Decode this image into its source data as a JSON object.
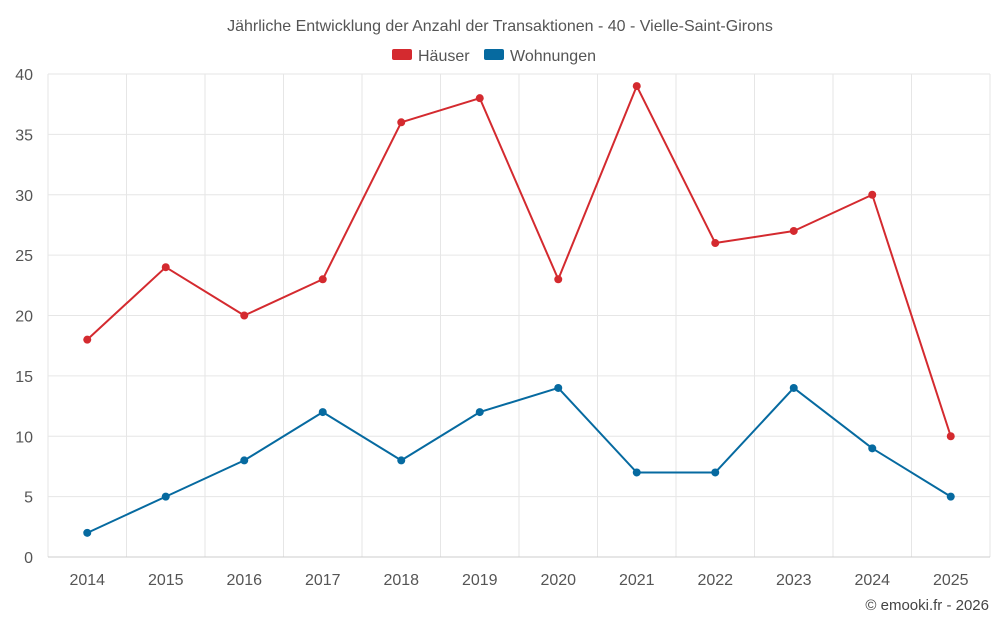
{
  "chart_data": {
    "type": "line",
    "title": "Jährliche Entwicklung der Anzahl der Transaktionen - 40 - Vielle-Saint-Girons",
    "categories": [
      "2014",
      "2015",
      "2016",
      "2017",
      "2018",
      "2019",
      "2020",
      "2021",
      "2022",
      "2023",
      "2024",
      "2025"
    ],
    "series": [
      {
        "name": "Häuser",
        "color": "#d42a2f",
        "values": [
          18,
          24,
          20,
          23,
          36,
          38,
          23,
          39,
          26,
          27,
          30,
          10
        ]
      },
      {
        "name": "Wohnungen",
        "color": "#066aa0",
        "values": [
          2,
          5,
          8,
          12,
          8,
          12,
          14,
          7,
          7,
          14,
          9,
          5
        ]
      }
    ],
    "ylim": [
      0,
      40
    ],
    "yticks": [
      0,
      5,
      10,
      15,
      20,
      25,
      30,
      35,
      40
    ],
    "grid": true,
    "legend_position": "top-center",
    "xlabel": "",
    "ylabel": ""
  },
  "credit": "© emooki.fr - 2026"
}
